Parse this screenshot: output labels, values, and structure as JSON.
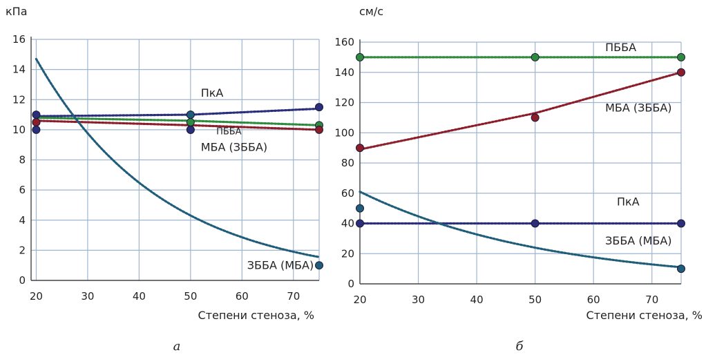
{
  "chart_data": [
    {
      "type": "line",
      "panel_label": "а",
      "y_unit": "кПа",
      "xlabel": "Степени стеноза, %",
      "xlim": [
        19,
        75
      ],
      "ylim": [
        0,
        16
      ],
      "x_ticks": [
        20,
        30,
        40,
        50,
        60,
        70
      ],
      "y_ticks": [
        0,
        2,
        4,
        6,
        8,
        10,
        12,
        14,
        16
      ],
      "grid": true,
      "x": [
        20,
        50,
        75
      ],
      "series": [
        {
          "name": "ПкА",
          "color": "#2b2f7a",
          "points": [
            11.0,
            11.0,
            11.5
          ],
          "trend": {
            "kind": "linear",
            "values": [
              10.9,
              11.0,
              11.4
            ]
          }
        },
        {
          "name": "ПББА",
          "color": "#2e8b3e",
          "points": [
            10.5,
            10.5,
            10.3
          ],
          "trend": {
            "kind": "linear",
            "values": [
              10.8,
              10.6,
              10.3
            ]
          }
        },
        {
          "name": "МБА (ЗББА)",
          "color": "#8b1e2a",
          "points": [
            10.5,
            10.0,
            10.0
          ],
          "trend": {
            "kind": "linear",
            "values": [
              10.6,
              10.3,
              10.0
            ]
          }
        },
        {
          "name": "",
          "color": "#2b2f7a",
          "points": [
            10.0,
            10.0,
            null
          ],
          "trend": null
        },
        {
          "name": "ЗББА (МБА)",
          "color": "#1f5d7a",
          "points": [
            null,
            11.0,
            1.0
          ],
          "trend": {
            "kind": "exponential",
            "values": [
              14.7,
              4.3,
              1.55
            ]
          }
        }
      ],
      "annotations": [
        {
          "text": "ПкА",
          "x": 52,
          "y": 12.2
        },
        {
          "text": "ПББА",
          "x": 55,
          "y": 9.7,
          "small": true
        },
        {
          "text": "МБА (ЗББА)",
          "x": 52,
          "y": 8.6
        },
        {
          "text": "ЗББА (МБА)",
          "x": 61,
          "y": 0.75
        }
      ]
    },
    {
      "type": "line",
      "panel_label": "б",
      "y_unit": "см/с",
      "xlabel": "Степени стеноза, %",
      "xlim": [
        20,
        75
      ],
      "ylim": [
        0,
        160
      ],
      "x_ticks": [
        20,
        30,
        40,
        50,
        60,
        70
      ],
      "y_ticks": [
        0,
        20,
        40,
        60,
        80,
        100,
        120,
        140,
        160
      ],
      "grid": true,
      "x": [
        20,
        50,
        75
      ],
      "series": [
        {
          "name": "ПББА",
          "color": "#2e8b3e",
          "points": [
            150,
            150,
            150
          ],
          "trend": {
            "kind": "linear",
            "values": [
              150,
              150,
              150
            ]
          }
        },
        {
          "name": "МБА (ЗББА)",
          "color": "#8b1e2a",
          "points": [
            90,
            110,
            140
          ],
          "trend": {
            "kind": "linear",
            "values": [
              89,
              113,
              140
            ]
          }
        },
        {
          "name": "ПкА",
          "color": "#2b2f7a",
          "points": [
            40,
            40,
            40
          ],
          "trend": {
            "kind": "linear",
            "values": [
              40,
              40,
              40
            ]
          }
        },
        {
          "name": "ЗББА (МБА)",
          "color": "#1f5d7a",
          "points": [
            50,
            null,
            10
          ],
          "trend": {
            "kind": "exponential",
            "values": [
              61,
              26,
              11
            ]
          }
        }
      ],
      "annotations": [
        {
          "text": "ПББА",
          "x": 62,
          "y": 154
        },
        {
          "text": "МБА (ЗББА)",
          "x": 62,
          "y": 114
        },
        {
          "text": "ПкА",
          "x": 64,
          "y": 52
        },
        {
          "text": "ЗББА (МБА)",
          "x": 62,
          "y": 26
        }
      ]
    }
  ]
}
